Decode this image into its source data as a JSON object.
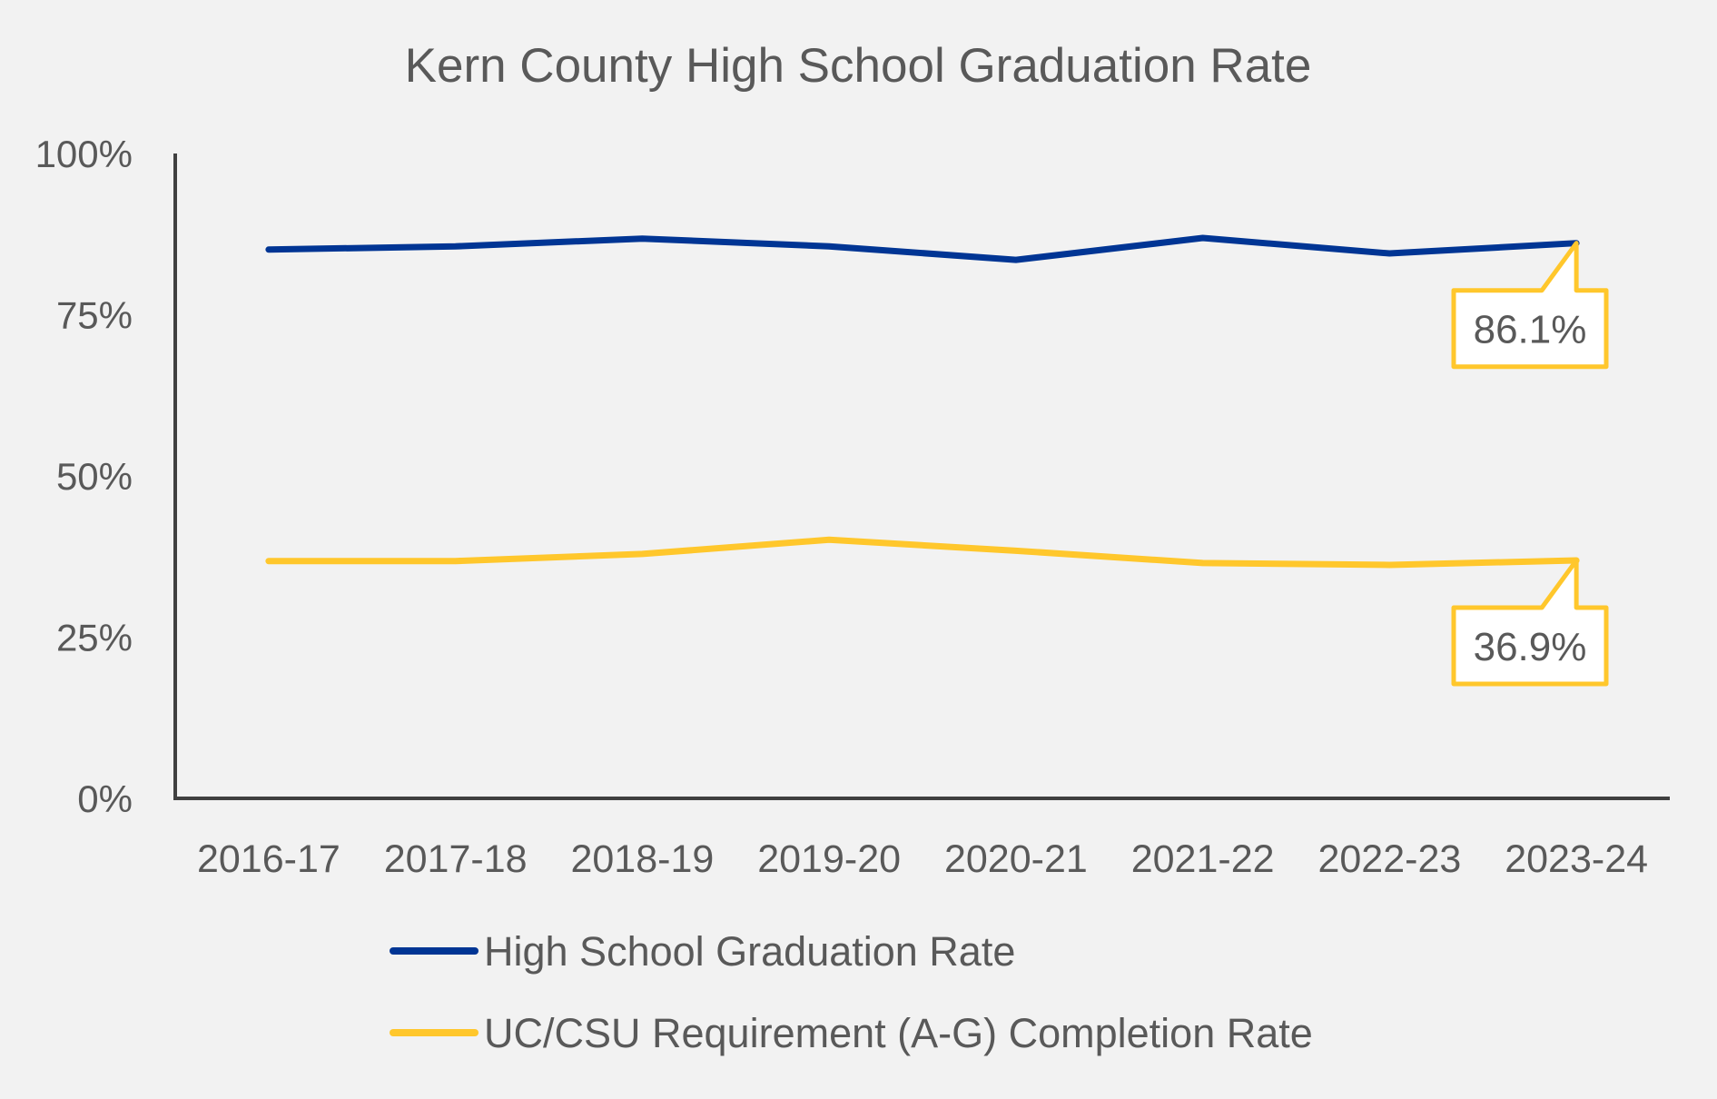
{
  "chart_data": {
    "type": "line",
    "title": "Kern County High School Graduation Rate",
    "xlabel": "",
    "ylabel": "",
    "categories": [
      "2016-17",
      "2017-18",
      "2018-19",
      "2019-20",
      "2020-21",
      "2021-22",
      "2022-23",
      "2023-24"
    ],
    "y_ticks": [
      "0%",
      "25%",
      "50%",
      "75%",
      "100%"
    ],
    "ylim": [
      0,
      100
    ],
    "grid": false,
    "legend_position": "bottom",
    "series": [
      {
        "name": "High School Graduation Rate",
        "color": "#003594",
        "values": [
          85.1,
          85.6,
          86.8,
          85.6,
          83.5,
          86.9,
          84.5,
          86.1
        ]
      },
      {
        "name": "UC/CSU Requirement (A-G) Completion Rate",
        "color": "#ffc72c",
        "values": [
          36.8,
          36.8,
          37.9,
          40.1,
          38.4,
          36.5,
          36.2,
          36.9
        ]
      }
    ],
    "annotations": [
      {
        "series": 0,
        "category": "2023-24",
        "label": "86.1%"
      },
      {
        "series": 1,
        "category": "2023-24",
        "label": "36.9%"
      }
    ],
    "callout_border_color": "#ffc72c",
    "axis_color": "#404040"
  }
}
